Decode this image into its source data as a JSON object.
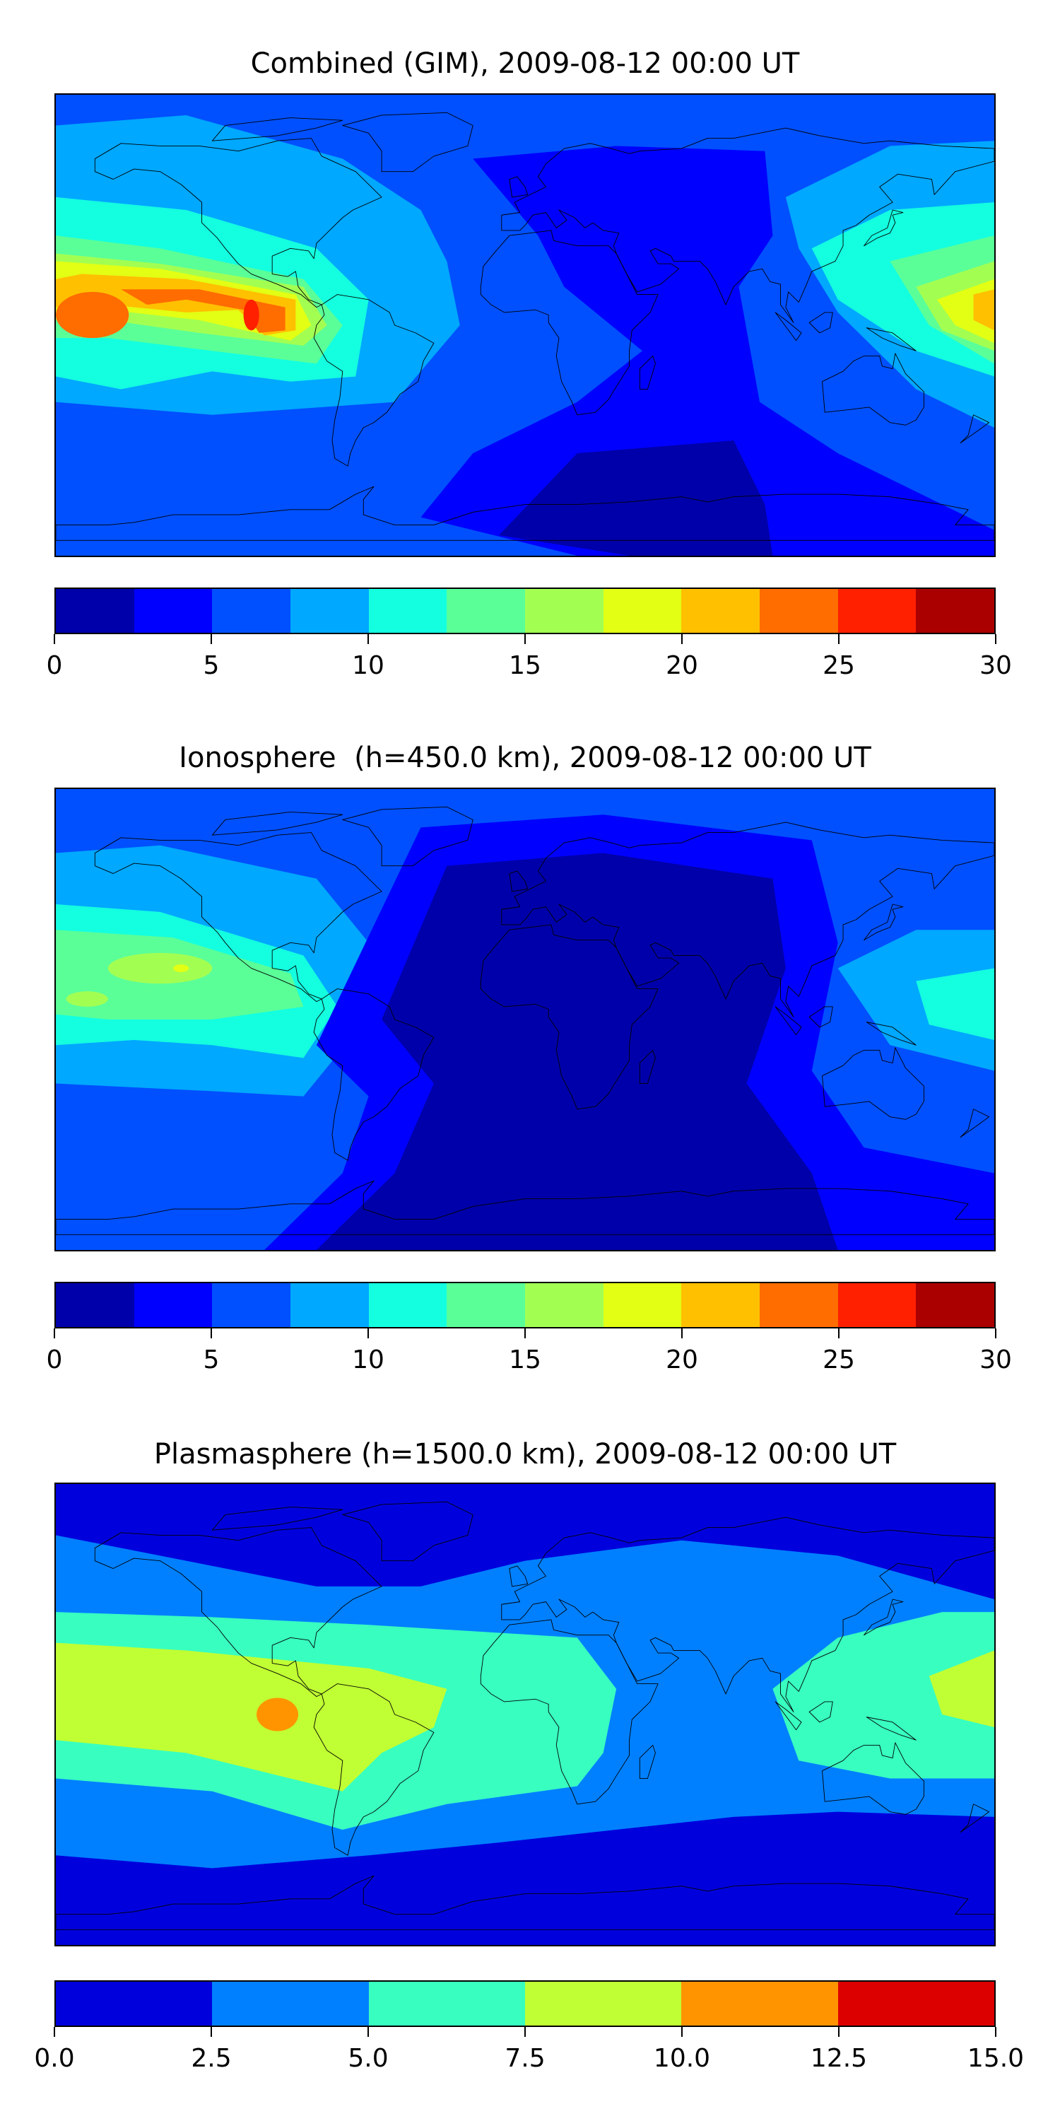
{
  "chart_data": [
    {
      "type": "heatmap",
      "subtype": "filled-contour world map",
      "title": "Combined (GIM), 2009-08-12 00:00 UT",
      "levels": [
        0,
        2.5,
        5,
        7.5,
        10,
        12.5,
        15,
        17.5,
        20,
        22.5,
        25,
        27.5,
        30
      ],
      "colors": [
        "#0000aa",
        "#0000ff",
        "#0050ff",
        "#00a8ff",
        "#14ffe0",
        "#5aff98",
        "#a2ff52",
        "#e2ff14",
        "#ffc000",
        "#ff6c00",
        "#ff2000",
        "#aa0000"
      ],
      "colorbar_ticks": [
        "0",
        "5",
        "10",
        "15",
        "20",
        "25",
        "30"
      ],
      "colorbar_tick_values": [
        0,
        5,
        10,
        15,
        20,
        25,
        30
      ],
      "max_region": "eastern Pacific west of South America (22.5-25)"
    },
    {
      "type": "heatmap",
      "subtype": "filled-contour world map",
      "title": "Ionosphere  (h=450.0 km), 2009-08-12 00:00 UT",
      "levels": [
        0,
        2.5,
        5,
        7.5,
        10,
        12.5,
        15,
        17.5,
        20,
        22.5,
        25,
        27.5,
        30
      ],
      "colors": [
        "#0000aa",
        "#0000ff",
        "#0050ff",
        "#00a8ff",
        "#14ffe0",
        "#5aff98",
        "#a2ff52",
        "#e2ff14",
        "#ffc000",
        "#ff6c00",
        "#ff2000",
        "#aa0000"
      ],
      "colorbar_ticks": [
        "0",
        "5",
        "10",
        "15",
        "20",
        "25",
        "30"
      ],
      "colorbar_tick_values": [
        0,
        5,
        10,
        15,
        20,
        25,
        30
      ],
      "max_region": "central Pacific (17.5-20)"
    },
    {
      "type": "heatmap",
      "subtype": "filled-contour world map",
      "title": "Plasmasphere (h=1500.0 km), 2009-08-12 00:00 UT",
      "levels": [
        0,
        2.5,
        5,
        7.5,
        10,
        12.5,
        15
      ],
      "colors": [
        "#0000dd",
        "#0080ff",
        "#38ffc0",
        "#c0ff33",
        "#ff9400",
        "#dd0000"
      ],
      "colorbar_ticks": [
        "0.0",
        "2.5",
        "5.0",
        "7.5",
        "10.0",
        "12.5",
        "15.0"
      ],
      "colorbar_tick_values": [
        0,
        2.5,
        5,
        7.5,
        10,
        12.5,
        15
      ],
      "max_region": "eastern Pacific (10-12.5)"
    }
  ]
}
